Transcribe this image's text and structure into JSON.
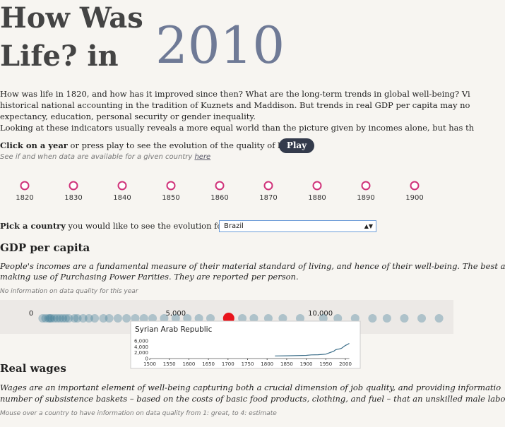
{
  "header": {
    "title_line1": "How Was",
    "title_line2": "Life? in",
    "year": "2010"
  },
  "intro": [
    "How was life in 1820, and how has it improved since then? What are the long-term trends in global well-being? Vi",
    "historical national accounting in the tradition of Kuznets and Maddison. But trends in real GDP per capita may no",
    "expectancy, education, personal security or gender inequality.",
    "Looking at these indicators usually reveals a more equal world than the picture given by incomes alone, but has th"
  ],
  "controls": {
    "click_bold": "Click on a year",
    "click_rest": " or press play to see the evolution of the quality of life",
    "play": "Play",
    "availability": "See if and when data are available for a given country ",
    "availability_link": "here",
    "pick_bold": "Pick a country",
    "pick_rest": " you would like to see the evolution for :",
    "country": "Brazil"
  },
  "timeline": {
    "years": [
      1820,
      1830,
      1840,
      1850,
      1860,
      1870,
      1880,
      1890,
      1900
    ],
    "color": "#d0337a"
  },
  "gdp": {
    "heading": "GDP per capita",
    "description": [
      "People's incomes are a fundamental measure of their material standard of living, and hence of their well-being. The best a",
      "making use of Purchasing Power Parities. They are reported per person."
    ],
    "quality_note": "No information on data quality for this year"
  },
  "chart_data": [
    {
      "type": "strip",
      "xlim": [
        0,
        14500
      ],
      "xticks": [
        0,
        {
          "value": 5000,
          "label": "5,000"
        },
        {
          "value": 10000,
          "label": "10,000"
        }
      ],
      "values": [
        400,
        500,
        600,
        650,
        700,
        800,
        900,
        1000,
        1100,
        1200,
        1300,
        1500,
        1600,
        1800,
        2000,
        2200,
        2500,
        2700,
        3000,
        3300,
        3600,
        3900,
        4200,
        4600,
        5000,
        5400,
        5800,
        6200,
        7300,
        7700,
        8200,
        8700,
        9300,
        10100,
        10600,
        11200,
        11800,
        12300,
        12900,
        13500,
        14100
      ],
      "color": "#3d7a94",
      "selected": {
        "value": 6830,
        "color": "#e8141c"
      }
    },
    {
      "type": "line",
      "title": "Syrian Arab Republic",
      "x": [
        1820,
        1850,
        1870,
        1900,
        1913,
        1930,
        1950,
        1960,
        1970,
        1975,
        1980,
        1985,
        1990,
        1995,
        2000,
        2005,
        2010
      ],
      "values": [
        900,
        950,
        1000,
        1100,
        1250,
        1300,
        1500,
        2000,
        2500,
        3000,
        3200,
        3300,
        3500,
        4000,
        4500,
        4800,
        5200
      ],
      "color": "#3d6f8a",
      "xlim": [
        1500,
        2010
      ],
      "ylim": [
        0,
        7500
      ],
      "xticks": [
        1500,
        1550,
        1600,
        1650,
        1700,
        1750,
        1800,
        1850,
        1900,
        1950,
        2000
      ],
      "yticks": [
        0,
        {
          "value": 2000,
          "label": "2,000"
        },
        {
          "value": 4000,
          "label": "4,000"
        },
        {
          "value": 6000,
          "label": "6,000"
        }
      ]
    }
  ],
  "wages": {
    "heading": "Real wages",
    "description": [
      "Wages are an important element of well-being capturing both a crucial dimension of job quality, and providing informatio",
      "number of subsistence baskets – based on the costs of basic food products, clothing, and fuel – that an unskilled male labo"
    ],
    "quality_note": "Mouse over a country to have information on data quality from 1: great, to 4: estimate"
  }
}
